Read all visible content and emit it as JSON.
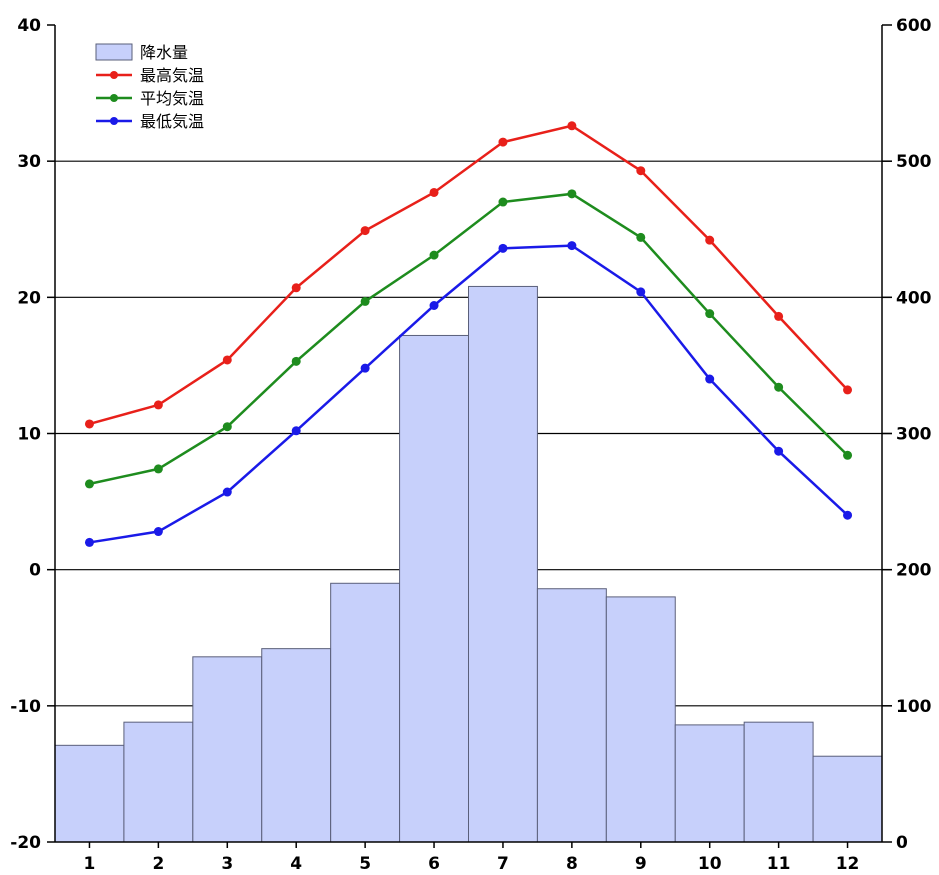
{
  "chart_data": {
    "type": "bar+line",
    "categories": [
      "1",
      "2",
      "3",
      "4",
      "5",
      "6",
      "7",
      "8",
      "9",
      "10",
      "11",
      "12"
    ],
    "left_axis": {
      "ylim": [
        -20,
        40
      ],
      "ticks": [
        "-20",
        "-10",
        "0",
        "10",
        "20",
        "30",
        "40"
      ]
    },
    "right_axis": {
      "ylim": [
        0,
        600
      ],
      "ticks": [
        "0",
        "100",
        "200",
        "300",
        "400",
        "500",
        "600"
      ]
    },
    "grid": true,
    "legend_position": "top-left",
    "bars": {
      "name": "降水量",
      "axis": "right",
      "color": "#c7d0fb",
      "values": [
        71,
        88,
        136,
        142,
        190,
        372,
        408,
        186,
        180,
        86,
        88,
        63
      ]
    },
    "series": [
      {
        "name": "最高気温",
        "axis": "left",
        "color": "#e8201a",
        "values": [
          10.7,
          12.1,
          15.4,
          20.7,
          24.9,
          27.7,
          31.4,
          32.6,
          29.3,
          24.2,
          18.6,
          13.2
        ]
      },
      {
        "name": "平均気温",
        "axis": "left",
        "color": "#1e8c1e",
        "values": [
          6.3,
          7.4,
          10.5,
          15.3,
          19.7,
          23.1,
          27.0,
          27.6,
          24.4,
          18.8,
          13.4,
          8.4
        ]
      },
      {
        "name": "最低気温",
        "axis": "left",
        "color": "#1a1ae8",
        "values": [
          2.0,
          2.8,
          5.7,
          10.2,
          14.8,
          19.4,
          23.6,
          23.8,
          20.4,
          14.0,
          8.7,
          4.0
        ]
      }
    ]
  }
}
